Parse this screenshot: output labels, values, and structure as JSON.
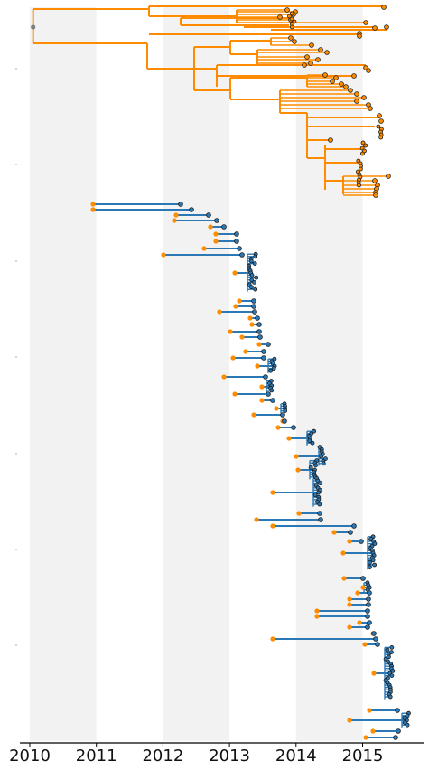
{
  "chart_data": {
    "type": "tree",
    "title": "",
    "xlabel": "",
    "ylabel": "",
    "x_axis": {
      "ticks": [
        2010,
        2011,
        2012,
        2013,
        2014,
        2015
      ],
      "tick_labels": [
        "2010",
        "2011",
        "2012",
        "2013",
        "2014",
        "2015"
      ],
      "xlim": [
        2009.85,
        2015.93
      ]
    },
    "y_axis": {
      "ticks_visible": true,
      "tick_labels": []
    },
    "background_bands": [
      [
        2010,
        2011
      ],
      [
        2012,
        2013
      ],
      [
        2014,
        2015
      ]
    ],
    "root": {
      "x": 2010.05
    },
    "clades": [
      {
        "name": "",
        "color": "#ff8c00",
        "tip_count": 110,
        "x_range": [
          2011.8,
          2015.4
        ]
      },
      {
        "name": "",
        "color": "#2b78b5",
        "tip_count": 220,
        "x_range": [
          2012.3,
          2015.7
        ]
      }
    ],
    "legend": {
      "visible": false
    },
    "grid": false,
    "colors": {
      "orange": "#ff8c00",
      "blue": "#2b78b5",
      "band": "#f2f2f2",
      "node_edge": "#1a1a1a",
      "root_node": "#7f7f7f"
    }
  }
}
